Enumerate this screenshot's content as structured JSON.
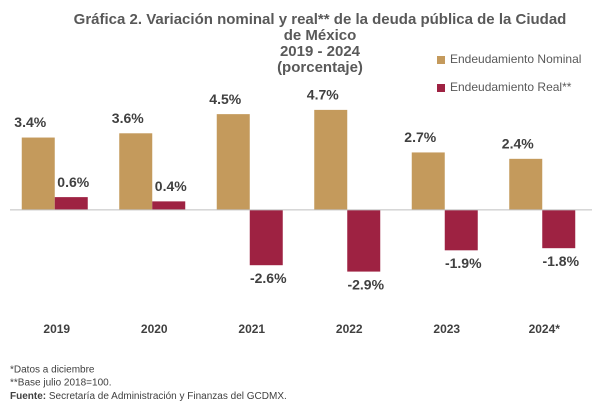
{
  "chart_data": {
    "type": "bar",
    "title_lines": [
      "Gráfica 2. Variación nominal y real** de la deuda pública de la Ciudad",
      "de México",
      "2019 - 2024",
      "(porcentaje)"
    ],
    "categories": [
      "2019",
      "2020",
      "2021",
      "2022",
      "2023",
      "2024*"
    ],
    "series": [
      {
        "name": "Endeudamiento Nominal",
        "color": "#c49a5c",
        "values": [
          3.4,
          3.6,
          4.5,
          4.7,
          2.7,
          2.4
        ],
        "value_labels": [
          "3.4%",
          "3.6%",
          "4.5%",
          "4.7%",
          "2.7%",
          "2.4%"
        ]
      },
      {
        "name": "Endeudamiento Real**",
        "color": "#9e2242",
        "values": [
          0.6,
          0.4,
          -2.6,
          -2.9,
          -1.9,
          -1.8
        ],
        "value_labels": [
          "0.6%",
          "0.4%",
          "-2.6%",
          "-2.9%",
          "-1.9%",
          "-1.8%"
        ]
      }
    ],
    "ylim": [
      -4,
      5
    ],
    "legend": "right",
    "footnotes": [
      "*Datos a diciembre",
      "**Base julio 2018=100."
    ],
    "source_label": "Fuente:",
    "source_text": "Secretaría de Administración y Finanzas del GCDMX."
  }
}
